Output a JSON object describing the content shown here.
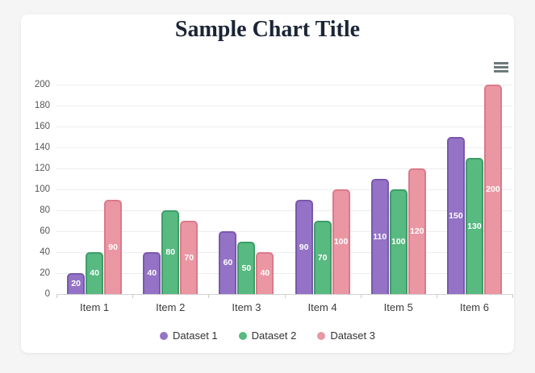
{
  "page": {
    "background_color": "#f5f5f6",
    "card_background_color": "#ffffff"
  },
  "toolbar": {
    "menu_icon": "hamburger-menu-icon",
    "menu_icon_color": "#6c7a7b"
  },
  "chart_data": {
    "type": "bar",
    "title": "Sample Chart Title",
    "title_color": "#1b2535",
    "categories": [
      "Item 1",
      "Item 2",
      "Item 3",
      "Item 4",
      "Item 5",
      "Item 6"
    ],
    "series": [
      {
        "name": "Dataset 1",
        "color": "#9473c6",
        "border_color": "#7a58ad",
        "values": [
          20,
          40,
          60,
          90,
          110,
          150
        ]
      },
      {
        "name": "Dataset 2",
        "color": "#58b981",
        "border_color": "#3c9e68",
        "values": [
          40,
          80,
          50,
          70,
          100,
          130
        ]
      },
      {
        "name": "Dataset 3",
        "color": "#eb97a3",
        "border_color": "#da7a89",
        "values": [
          90,
          70,
          40,
          100,
          120,
          200
        ]
      }
    ],
    "ylim": [
      0,
      200
    ],
    "yticks": [
      0,
      20,
      40,
      60,
      80,
      100,
      120,
      140,
      160,
      180,
      200
    ],
    "xlabel": "",
    "ylabel": "",
    "grid": true,
    "legend_position": "bottom",
    "value_labels": true,
    "value_label_color": "#ffffff"
  }
}
